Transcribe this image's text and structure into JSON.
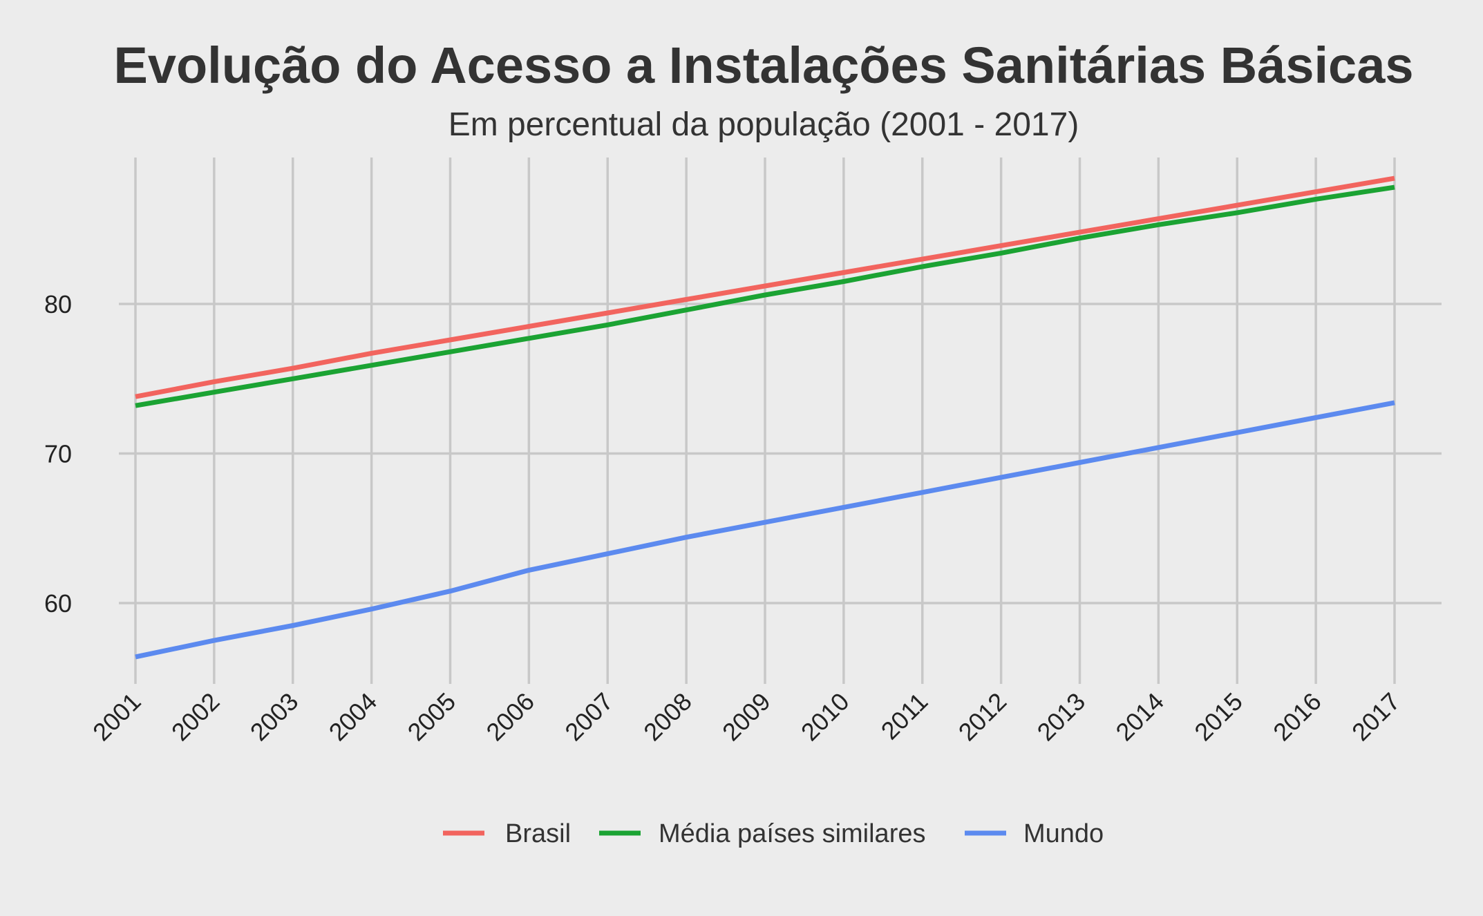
{
  "chart_data": {
    "type": "line",
    "title": "Evolução do Acesso a Instalações Sanitárias Básicas",
    "subtitle": "Em percentual da população (2001 - 2017)",
    "xlabel": "",
    "ylabel": "",
    "x": [
      2001,
      2002,
      2003,
      2004,
      2005,
      2006,
      2007,
      2008,
      2009,
      2010,
      2011,
      2012,
      2013,
      2014,
      2015,
      2016,
      2017
    ],
    "x_tick_labels": [
      "2001",
      "2002",
      "2003",
      "2004",
      "2005",
      "2006",
      "2007",
      "2008",
      "2009",
      "2010",
      "2011",
      "2012",
      "2013",
      "2014",
      "2015",
      "2016",
      "2017"
    ],
    "y_ticks": [
      60,
      70,
      80
    ],
    "y_tick_labels": [
      "60",
      "70",
      "80"
    ],
    "ylim": [
      55,
      90
    ],
    "grid": true,
    "legend_position": "bottom",
    "series": [
      {
        "name": "Brasil",
        "color": "#f2645e",
        "values": [
          73.8,
          74.8,
          75.7,
          76.7,
          77.6,
          78.5,
          79.4,
          80.3,
          81.2,
          82.1,
          83.0,
          83.9,
          84.8,
          85.7,
          86.6,
          87.5,
          88.4
        ]
      },
      {
        "name": "Média países similares",
        "color": "#1ba333",
        "values": [
          73.2,
          74.1,
          75.0,
          75.9,
          76.8,
          77.7,
          78.6,
          79.6,
          80.6,
          81.5,
          82.5,
          83.4,
          84.4,
          85.3,
          86.1,
          87.0,
          87.8
        ]
      },
      {
        "name": "Mundo",
        "color": "#5c8aef",
        "values": [
          56.4,
          57.5,
          58.5,
          59.6,
          60.8,
          62.2,
          63.3,
          64.4,
          65.4,
          66.4,
          67.4,
          68.4,
          69.4,
          70.4,
          71.4,
          72.4,
          73.4
        ]
      }
    ]
  }
}
